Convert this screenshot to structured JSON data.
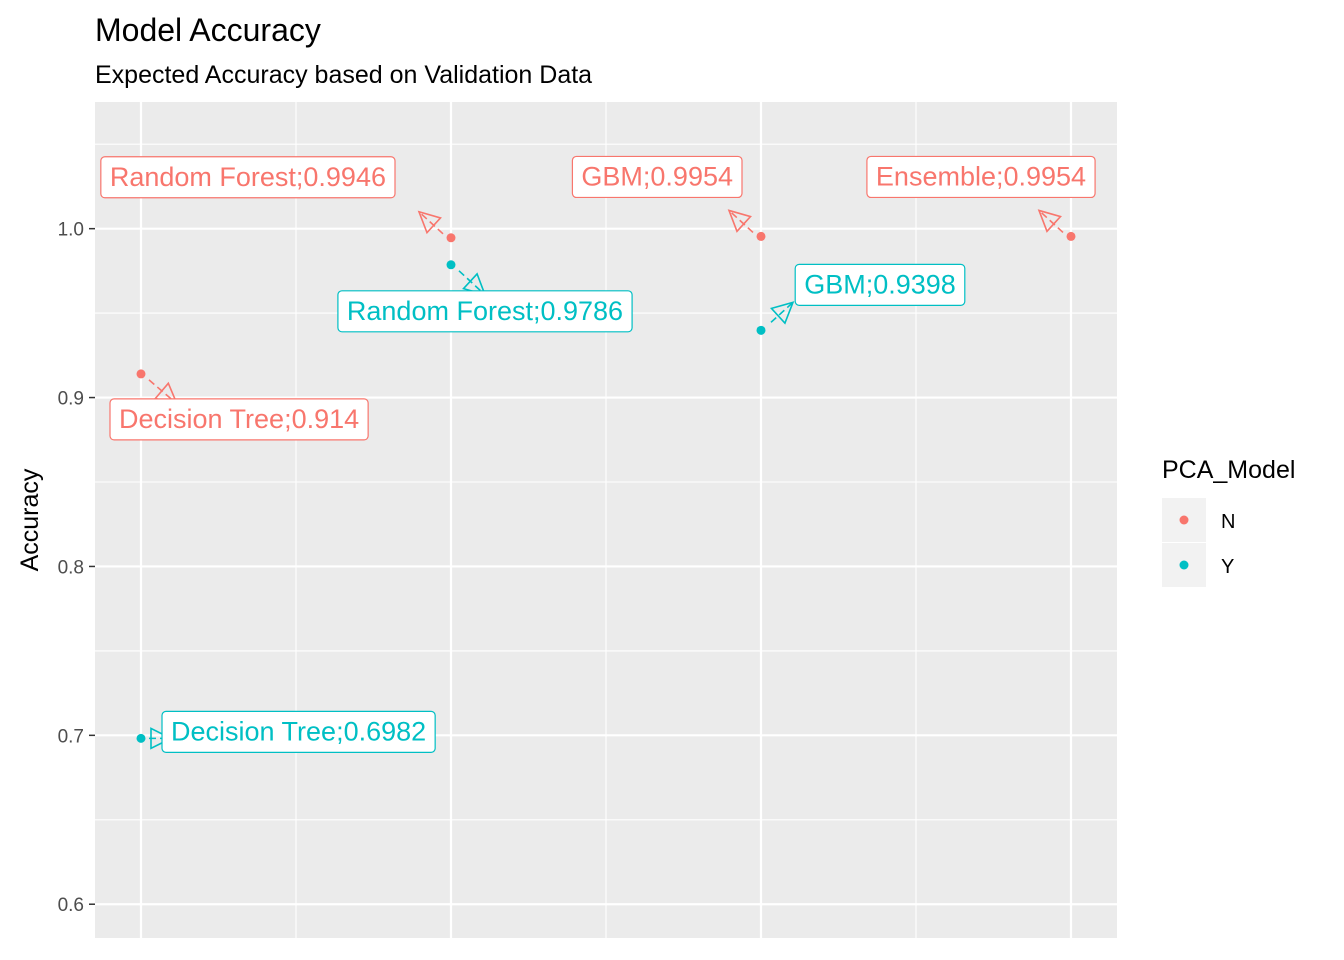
{
  "chart_data": {
    "type": "scatter",
    "title": "Model Accuracy",
    "subtitle": "Expected Accuracy based on Validation Data",
    "xlabel": "",
    "ylabel": "Accuracy",
    "ylim": [
      0.58,
      1.075
    ],
    "y_ticks": [
      "0.6",
      "0.7",
      "0.8",
      "0.9",
      "1.0"
    ],
    "y_tick_values": [
      0.6,
      0.7,
      0.8,
      0.9,
      1.0
    ],
    "x_categories_count": 4,
    "grid": true,
    "legend": {
      "title": "PCA_Model",
      "position": "right",
      "entries": [
        {
          "label": "N",
          "color": "#F8766D"
        },
        {
          "label": "Y",
          "color": "#00BFC4"
        }
      ]
    },
    "points": [
      {
        "x": 1,
        "y": 0.914,
        "group": "N",
        "label": "Decision Tree;0.914"
      },
      {
        "x": 1,
        "y": 0.6982,
        "group": "Y",
        "label": "Decision Tree;0.6982"
      },
      {
        "x": 2,
        "y": 0.9946,
        "group": "N",
        "label": "Random Forest;0.9946"
      },
      {
        "x": 2,
        "y": 0.9786,
        "group": "Y",
        "label": "Random Forest;0.9786"
      },
      {
        "x": 3,
        "y": 0.9954,
        "group": "N",
        "label": "GBM;0.9954"
      },
      {
        "x": 3,
        "y": 0.9398,
        "group": "Y",
        "label": "GBM;0.9398"
      },
      {
        "x": 4,
        "y": 0.9954,
        "group": "N",
        "label": "Ensemble;0.9954"
      }
    ]
  }
}
